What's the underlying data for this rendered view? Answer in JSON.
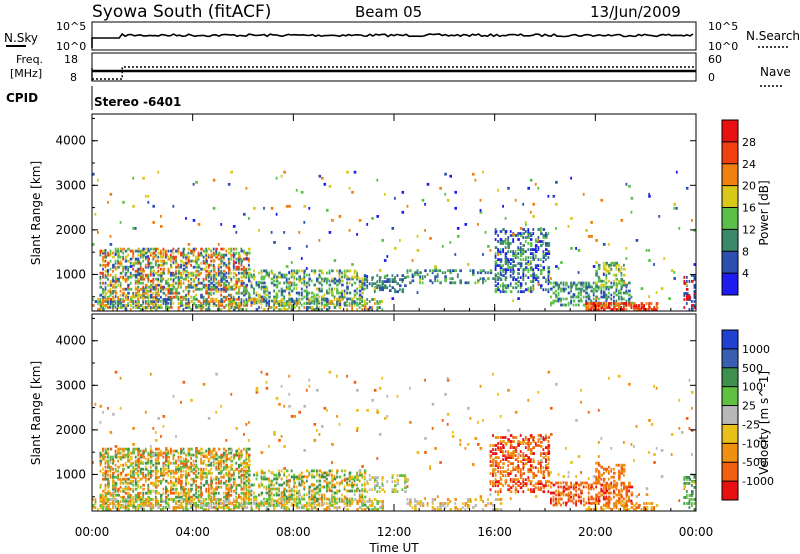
{
  "header": {
    "title": "Syowa South (fitACF)",
    "beam": "Beam 05",
    "date": "13/Jun/2009"
  },
  "panels": {
    "nsky_label": "N.Sky",
    "nsky_ticks": [
      "10^5",
      "10^0"
    ],
    "nsearch_label": "N.Search",
    "nsearch_ticks": [
      "10^5",
      "10^0"
    ],
    "freq_label_1": "Freq.",
    "freq_label_2": "[MHz]",
    "freq_ticks": [
      "18",
      "8"
    ],
    "nave_label": "Nave",
    "nave_ticks": [
      "60",
      "0"
    ],
    "cpid_label": "CPID",
    "cpid_value": "Stereo -6401"
  },
  "chart_data": [
    {
      "type": "heatmap",
      "quantity": "Power",
      "ylabel": "Slant Range [km]",
      "colorbar_label": "Power [dB]",
      "colorbar_ticks": [
        "4",
        "8",
        "12",
        "16",
        "20",
        "24",
        "28"
      ],
      "colors": [
        "#1c1cf0",
        "#2d4fb0",
        "#3a8a6a",
        "#5bc04a",
        "#d8c818",
        "#f08010",
        "#f04010",
        "#e81010"
      ],
      "y_ticks": [
        "1000",
        "2000",
        "3000",
        "4000"
      ],
      "ylim": [
        180,
        4600
      ]
    },
    {
      "type": "heatmap",
      "quantity": "Velocity",
      "ylabel": "Slant Range [km]",
      "colorbar_label": "Velocity [m s^-1]",
      "colorbar_ticks": [
        "1000",
        "500",
        "100",
        "25",
        "-25",
        "-100",
        "-500",
        "-1000"
      ],
      "colors": [
        "#2040d0",
        "#3a5fb0",
        "#3f8f4f",
        "#60c040",
        "#b8b8b8",
        "#e8c018",
        "#f09010",
        "#f06010",
        "#e81010"
      ],
      "y_ticks": [
        "1000",
        "2000",
        "3000",
        "4000"
      ],
      "ylim": [
        180,
        4600
      ]
    }
  ],
  "x_axis": {
    "label": "Time UT",
    "ticks": [
      "00:00",
      "04:00",
      "08:00",
      "12:00",
      "16:00",
      "20:00",
      "00:00"
    ]
  }
}
